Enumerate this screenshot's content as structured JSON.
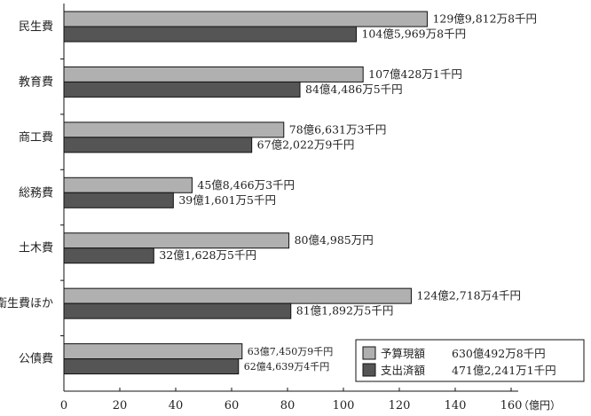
{
  "chart_data": {
    "type": "bar",
    "orientation": "horizontal",
    "categories": [
      "民生費",
      "教育費",
      "商工費",
      "総務費",
      "土木費",
      "衛生費ほか",
      "公債費"
    ],
    "series": [
      {
        "name": "予算現額",
        "color": "#b0b0b0",
        "values": [
          129.98128,
          107.04281,
          78.66313,
          45.84663,
          80.4985,
          124.27184,
          63.745
        ],
        "labels": [
          "129億9,812万8千円",
          "107億428万1千円",
          "78億6,631万3千円",
          "45億8,466万3千円",
          "80億4,985万円",
          "124億2,718万4千円",
          "63億7,450万9千円"
        ],
        "total": "630億492万8千円"
      },
      {
        "name": "支出済額",
        "color": "#555555",
        "values": [
          104.59698,
          84.44865,
          67.20229,
          39.16015,
          32.16285,
          81.18925,
          62.46394
        ],
        "labels": [
          "104億5,969万8千円",
          "84億4,486万5千円",
          "67億2,022万9千円",
          "39億1,601万5千円",
          "32億1,628万5千円",
          "81億1,892万5千円",
          "62億4,639万4千円"
        ],
        "total": "471億2,241万1千円"
      }
    ],
    "xlim": [
      0,
      160
    ],
    "xticks": [
      "0",
      "20",
      "40",
      "60",
      "80",
      "100",
      "120",
      "140",
      "160"
    ],
    "xunit": "（億円）",
    "grid": false,
    "legend_position": "bottom-right"
  }
}
